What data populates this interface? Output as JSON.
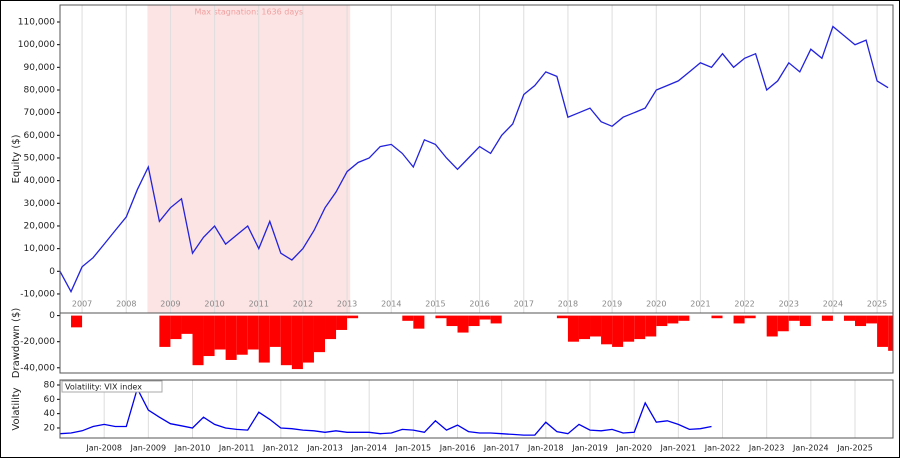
{
  "chart_data": [
    {
      "type": "line",
      "y_label": "Equity ($)",
      "color": "#2222dd",
      "annotation": {
        "label": "Max stagnation: 1636 days",
        "x0": 2008.98,
        "x1": 2013.57,
        "color": "#fde4e4"
      },
      "xlim": [
        2007,
        2025.86
      ],
      "ylim": [
        -18400,
        117500
      ],
      "xticks": [
        {
          "value": 2007.5,
          "label": "2007"
        },
        {
          "value": 2008.5,
          "label": "2008"
        },
        {
          "value": 2009.5,
          "label": "2009"
        },
        {
          "value": 2010.5,
          "label": "2010"
        },
        {
          "value": 2011.5,
          "label": "2011"
        },
        {
          "value": 2012.5,
          "label": "2012"
        },
        {
          "value": 2013.5,
          "label": "2013"
        },
        {
          "value": 2014.5,
          "label": "2014"
        },
        {
          "value": 2015.5,
          "label": "2015"
        },
        {
          "value": 2016.5,
          "label": "2016"
        },
        {
          "value": 2017.5,
          "label": "2017"
        },
        {
          "value": 2018.5,
          "label": "2018"
        },
        {
          "value": 2019.5,
          "label": "2019"
        },
        {
          "value": 2020.5,
          "label": "2020"
        },
        {
          "value": 2021.5,
          "label": "2021"
        },
        {
          "value": 2022.5,
          "label": "2022"
        },
        {
          "value": 2023.5,
          "label": "2023"
        },
        {
          "value": 2024.5,
          "label": "2024"
        },
        {
          "value": 2025.5,
          "label": "2025"
        }
      ],
      "yticks": [
        {
          "value": -10000,
          "label": "-10,000"
        },
        0,
        {
          "value": 10000,
          "label": "10,000"
        },
        {
          "value": 20000,
          "label": "20,000"
        },
        {
          "value": 30000,
          "label": "30,000"
        },
        {
          "value": 40000,
          "label": "40,000"
        },
        {
          "value": 50000,
          "label": "50,000"
        },
        {
          "value": 60000,
          "label": "60,000"
        },
        {
          "value": 70000,
          "label": "70,000"
        },
        {
          "value": 80000,
          "label": "80,000"
        },
        {
          "value": 90000,
          "label": "90,000"
        },
        {
          "value": 100000,
          "label": "100,000"
        },
        {
          "value": 110000,
          "label": "110,000"
        }
      ],
      "x": [
        2007,
        2007.25,
        2007.5,
        2007.75,
        2008,
        2008.25,
        2008.5,
        2008.75,
        2009,
        2009.25,
        2009.5,
        2009.75,
        2010,
        2010.25,
        2010.5,
        2010.75,
        2011,
        2011.25,
        2011.5,
        2011.75,
        2012,
        2012.25,
        2012.5,
        2012.75,
        2013,
        2013.25,
        2013.5,
        2013.75,
        2014,
        2014.25,
        2014.5,
        2014.75,
        2015,
        2015.25,
        2015.5,
        2015.75,
        2016,
        2016.25,
        2016.5,
        2016.75,
        2017,
        2017.25,
        2017.5,
        2017.75,
        2018,
        2018.25,
        2018.5,
        2018.75,
        2019,
        2019.25,
        2019.5,
        2019.75,
        2020,
        2020.25,
        2020.5,
        2020.75,
        2021,
        2021.25,
        2021.5,
        2021.75,
        2022,
        2022.25,
        2022.5,
        2022.75,
        2023,
        2023.25,
        2023.5,
        2023.75,
        2024,
        2024.25,
        2024.5,
        2024.75,
        2025,
        2025.25,
        2025.5,
        2025.75
      ],
      "values": [
        0,
        -9000,
        2000,
        6000,
        12000,
        18000,
        24000,
        36000,
        46000,
        22000,
        28000,
        32000,
        8000,
        15000,
        20000,
        12000,
        16000,
        20000,
        10000,
        22000,
        8000,
        5000,
        10000,
        18000,
        28000,
        35000,
        44000,
        48000,
        50000,
        55000,
        56000,
        52000,
        46000,
        58000,
        56000,
        50000,
        45000,
        50000,
        55000,
        52000,
        60000,
        65000,
        78000,
        82000,
        88000,
        86000,
        68000,
        70000,
        72000,
        66000,
        64000,
        68000,
        70000,
        72000,
        80000,
        82000,
        84000,
        88000,
        92000,
        90000,
        96000,
        90000,
        94000,
        96000,
        80000,
        84000,
        92000,
        88000,
        98000,
        94000,
        108000,
        104000,
        100000,
        102000,
        84000,
        81000
      ]
    },
    {
      "type": "bar",
      "y_label": "Drawdown ($)",
      "color": "#ff0000",
      "xlim": [
        2007,
        2025.86
      ],
      "ylim": [
        -44000,
        2000
      ],
      "yticks": [
        {
          "value": -40000,
          "label": "-40,000"
        },
        {
          "value": -20000,
          "label": "-20,000"
        },
        0
      ],
      "x": [
        2007,
        2007.25,
        2007.5,
        2007.75,
        2008,
        2008.25,
        2008.5,
        2008.75,
        2009,
        2009.25,
        2009.5,
        2009.75,
        2010,
        2010.25,
        2010.5,
        2010.75,
        2011,
        2011.25,
        2011.5,
        2011.75,
        2012,
        2012.25,
        2012.5,
        2012.75,
        2013,
        2013.25,
        2013.5,
        2013.75,
        2014,
        2014.25,
        2014.5,
        2014.75,
        2015,
        2015.25,
        2015.5,
        2015.75,
        2016,
        2016.25,
        2016.5,
        2016.75,
        2017,
        2017.25,
        2017.5,
        2017.75,
        2018,
        2018.25,
        2018.5,
        2018.75,
        2019,
        2019.25,
        2019.5,
        2019.75,
        2020,
        2020.25,
        2020.5,
        2020.75,
        2021,
        2021.25,
        2021.5,
        2021.75,
        2022,
        2022.25,
        2022.5,
        2022.75,
        2023,
        2023.25,
        2023.5,
        2023.75,
        2024,
        2024.25,
        2024.5,
        2024.75,
        2025,
        2025.25,
        2025.5,
        2025.75
      ],
      "values": [
        0,
        -9000,
        0,
        0,
        0,
        0,
        0,
        0,
        0,
        -24000,
        -18000,
        -14000,
        -38000,
        -31000,
        -26000,
        -34000,
        -30000,
        -26000,
        -36000,
        -24000,
        -38000,
        -41000,
        -36000,
        -28000,
        -18000,
        -11000,
        -2000,
        0,
        0,
        0,
        0,
        -4000,
        -10000,
        0,
        -2000,
        -8000,
        -13000,
        -8000,
        -3000,
        -6000,
        0,
        0,
        0,
        0,
        0,
        -2000,
        -20000,
        -18000,
        -16000,
        -22000,
        -24000,
        -20000,
        -18000,
        -16000,
        -8000,
        -6000,
        -4000,
        0,
        0,
        -2000,
        0,
        -6000,
        -2000,
        0,
        -16000,
        -12000,
        -4000,
        -8000,
        0,
        -4000,
        0,
        -4000,
        -8000,
        -6000,
        -24000,
        -27000
      ]
    },
    {
      "type": "line",
      "y_label": "Volatility",
      "legend": "Volatility: VIX index",
      "color": "#0000ee",
      "grid": "x",
      "xlim": [
        2007,
        2025.86
      ],
      "ylim": [
        6,
        87
      ],
      "yticks": [
        20,
        40,
        60,
        80
      ],
      "xticks": [
        {
          "value": 2008,
          "label": "Jan-2008"
        },
        {
          "value": 2009,
          "label": "Jan-2009"
        },
        {
          "value": 2010,
          "label": "Jan-2010"
        },
        {
          "value": 2011,
          "label": "Jan-2011"
        },
        {
          "value": 2012,
          "label": "Jan-2012"
        },
        {
          "value": 2013,
          "label": "Jan-2013"
        },
        {
          "value": 2014,
          "label": "Jan-2014"
        },
        {
          "value": 2015,
          "label": "Jan-2015"
        },
        {
          "value": 2016,
          "label": "Jan-2016"
        },
        {
          "value": 2017,
          "label": "Jan-2017"
        },
        {
          "value": 2018,
          "label": "Jan-2018"
        },
        {
          "value": 2019,
          "label": "Jan-2019"
        },
        {
          "value": 2020,
          "label": "Jan-2020"
        },
        {
          "value": 2021,
          "label": "Jan-2021"
        },
        {
          "value": 2022,
          "label": "Jan-2022"
        },
        {
          "value": 2023,
          "label": "Jan-2023"
        },
        {
          "value": 2024,
          "label": "Jan-2024"
        },
        {
          "value": 2025,
          "label": "Jan-2025"
        }
      ],
      "x": [
        2007,
        2007.25,
        2007.5,
        2007.75,
        2008,
        2008.25,
        2008.5,
        2008.75,
        2009,
        2009.25,
        2009.5,
        2009.75,
        2010,
        2010.25,
        2010.5,
        2010.75,
        2011,
        2011.25,
        2011.5,
        2011.75,
        2012,
        2012.25,
        2012.5,
        2012.75,
        2013,
        2013.25,
        2013.5,
        2013.75,
        2014,
        2014.25,
        2014.5,
        2014.75,
        2015,
        2015.25,
        2015.5,
        2015.75,
        2016,
        2016.25,
        2016.5,
        2016.75,
        2017,
        2017.25,
        2017.5,
        2017.75,
        2018,
        2018.25,
        2018.5,
        2018.75,
        2019,
        2019.25,
        2019.5,
        2019.75,
        2020,
        2020.25,
        2020.5,
        2020.75,
        2021,
        2021.25,
        2021.5,
        2021.75
      ],
      "values": [
        12,
        13,
        16,
        22,
        25,
        22,
        22,
        75,
        45,
        35,
        26,
        23,
        20,
        35,
        25,
        20,
        18,
        17,
        42,
        32,
        20,
        19,
        17,
        16,
        14,
        16,
        14,
        14,
        14,
        12,
        13,
        18,
        17,
        14,
        30,
        17,
        24,
        15,
        13,
        13,
        12,
        11,
        10,
        10,
        28,
        15,
        12,
        25,
        17,
        16,
        18,
        13,
        14,
        55,
        28,
        30,
        25,
        18,
        19,
        22
      ]
    }
  ]
}
